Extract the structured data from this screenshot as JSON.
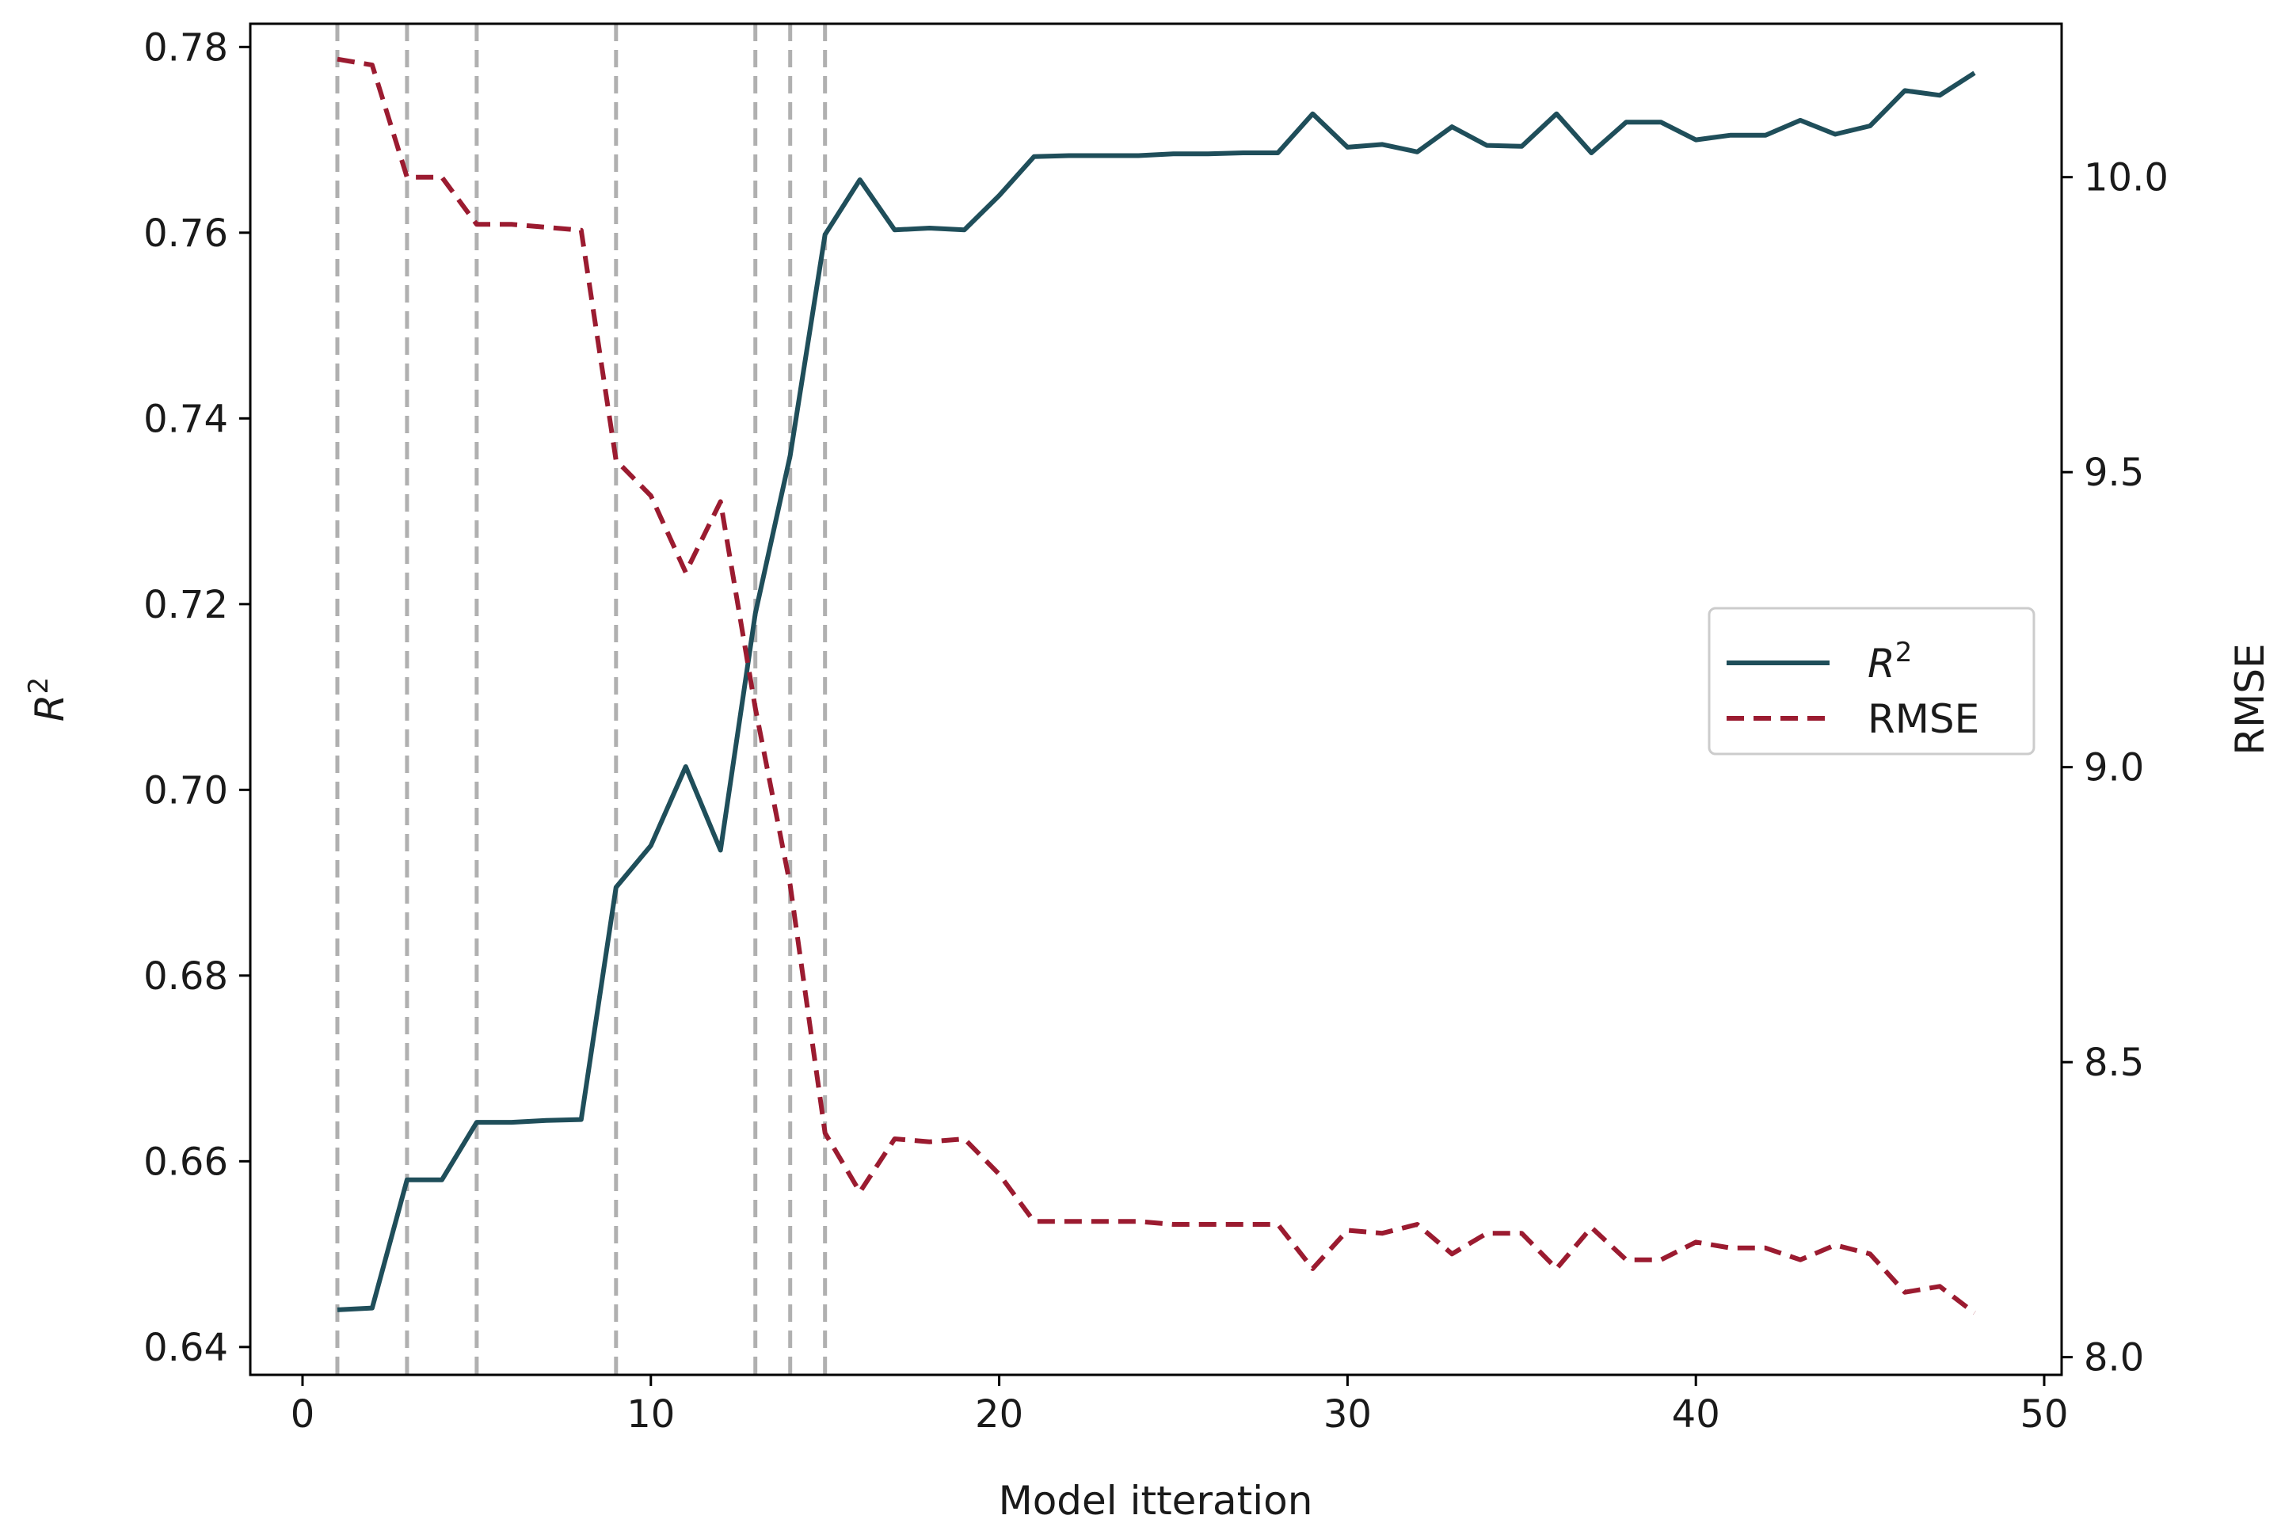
{
  "chart_data": {
    "type": "line",
    "title": "",
    "xlabel": "Model itteration",
    "ylabel_left": "R",
    "ylabel_left_superscript": "2",
    "ylabel_right": "RMSE",
    "xlim": [
      -1.5,
      50.5
    ],
    "ylim_left": [
      0.637,
      0.7825
    ],
    "ylim_right": [
      7.97,
      10.26
    ],
    "x_ticks": [
      0,
      10,
      20,
      30,
      40,
      50
    ],
    "x_tick_labels": [
      "0",
      "10",
      "20",
      "30",
      "40",
      "50"
    ],
    "y_left_ticks": [
      0.64,
      0.66,
      0.68,
      0.7,
      0.72,
      0.74,
      0.76,
      0.78
    ],
    "y_left_tick_labels": [
      "0.64",
      "0.66",
      "0.68",
      "0.70",
      "0.72",
      "0.74",
      "0.76",
      "0.78"
    ],
    "y_right_ticks": [
      8.0,
      8.5,
      9.0,
      9.5,
      10.0
    ],
    "y_right_tick_labels": [
      "8.0",
      "8.5",
      "9.0",
      "9.5",
      "10.0"
    ],
    "vertical_reference_lines": [
      1,
      3,
      5,
      9,
      13,
      14,
      15
    ],
    "grid": false,
    "legend_position": "center-right",
    "x": [
      1,
      2,
      3,
      4,
      5,
      6,
      7,
      8,
      9,
      10,
      11,
      12,
      13,
      14,
      15,
      16,
      17,
      18,
      19,
      20,
      21,
      22,
      23,
      24,
      25,
      26,
      27,
      28,
      29,
      30,
      31,
      32,
      33,
      34,
      35,
      36,
      37,
      38,
      39,
      40,
      41,
      42,
      43,
      44,
      45,
      46,
      47,
      48
    ],
    "series": [
      {
        "name": "R",
        "name_superscript": "2",
        "axis": "left",
        "color": "#1f4e5a",
        "dash": "solid",
        "values": [
          0.644,
          0.6442,
          0.658,
          0.658,
          0.6642,
          0.6642,
          0.6644,
          0.6645,
          0.6895,
          0.694,
          0.7025,
          0.6935,
          0.719,
          0.736,
          0.7598,
          0.7657,
          0.7603,
          0.7605,
          0.7603,
          0.764,
          0.7682,
          0.7683,
          0.7683,
          0.7683,
          0.7685,
          0.7685,
          0.7686,
          0.7686,
          0.7728,
          0.7692,
          0.7695,
          0.7687,
          0.7714,
          0.7694,
          0.7693,
          0.7728,
          0.7686,
          0.7719,
          0.7719,
          0.77,
          0.7705,
          0.7705,
          0.7721,
          0.7706,
          0.7715,
          0.7753,
          0.7748,
          0.7772
        ]
      },
      {
        "name": "RMSE",
        "axis": "right",
        "color": "#9b1b30",
        "dash": "dashed",
        "values": [
          10.2,
          10.19,
          10.0,
          10.0,
          9.92,
          9.92,
          9.915,
          9.91,
          9.52,
          9.46,
          9.33,
          9.45,
          9.1,
          8.8,
          8.38,
          8.28,
          8.37,
          8.365,
          8.37,
          8.31,
          8.23,
          8.23,
          8.23,
          8.23,
          8.225,
          8.225,
          8.225,
          8.225,
          8.15,
          8.215,
          8.21,
          8.225,
          8.175,
          8.21,
          8.21,
          8.15,
          8.22,
          8.165,
          8.165,
          8.195,
          8.185,
          8.185,
          8.165,
          8.19,
          8.175,
          8.11,
          8.12,
          8.075
        ]
      }
    ]
  }
}
